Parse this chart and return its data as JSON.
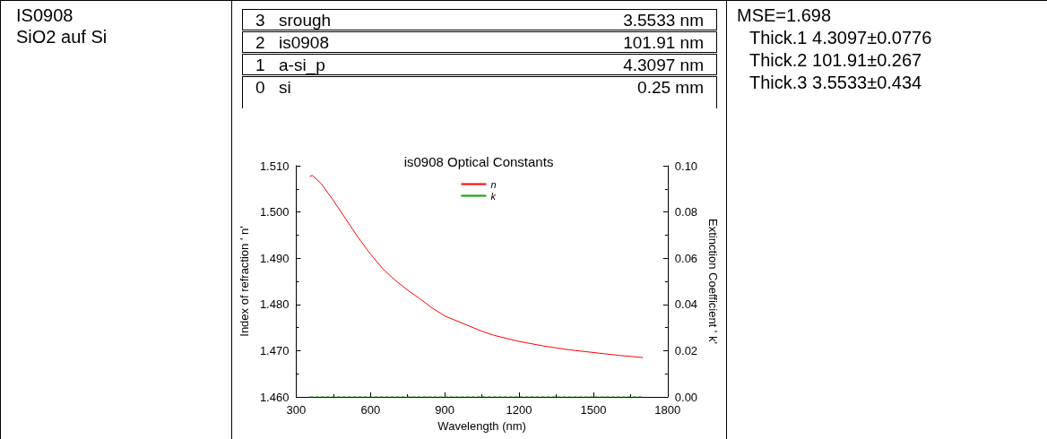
{
  "chart_data": {
    "type": "line",
    "title": "is0908 Optical Constants",
    "xlabel": "Wavelength (nm)",
    "ylabel": "Index of refraction ' n'",
    "y2label": "Extinction Coefficient ' k'",
    "annotations": [
      "IS0908",
      "SiO2 auf Si",
      "3",
      "srough",
      "3.5533 nm",
      "2",
      "is0908",
      "101.91 nm",
      "1",
      "a-si_p",
      "4.3097 nm",
      "0",
      "si",
      "0.25 mm",
      "MSE=1.698",
      "Thick.1  4.3097±0.0776",
      "Thick.2  101.91±0.267",
      "Thick.3  3.5533±0.434"
    ],
    "series": [
      {
        "name": "n",
        "color": "#ff0000",
        "line_style": "solid",
        "x": [
          355,
          365,
          400,
          450,
          500,
          550,
          600,
          650,
          700,
          750,
          800,
          850,
          900,
          1000,
          1050,
          1100,
          1200,
          1300,
          1350,
          1400,
          1500,
          1600,
          1700
        ],
        "values": [
          1.5077,
          1.5079,
          1.5062,
          1.5025,
          1.4985,
          1.4945,
          1.4909,
          1.4877,
          1.4852,
          1.4831,
          1.4812,
          1.4792,
          1.4775,
          1.4753,
          1.4742,
          1.4733,
          1.472,
          1.471,
          1.4706,
          1.4702,
          1.4696,
          1.469,
          1.4685
        ]
      },
      {
        "name": "k",
        "color": "#00a000",
        "line_style": "dashed",
        "axis": "y2",
        "x": [
          355,
          1700
        ],
        "values": [
          0,
          0
        ]
      }
    ],
    "xlim": [
      300,
      1800
    ],
    "xticks": [
      300,
      600,
      900,
      1200,
      1500,
      1800
    ],
    "ylim": [
      1.46,
      1.51
    ],
    "yticks": [
      {
        "value": 1.46,
        "label": "1.460"
      },
      {
        "value": 1.47,
        "label": "1.470"
      },
      {
        "value": 1.48,
        "label": "1.480"
      },
      {
        "value": 1.49,
        "label": "1.490"
      },
      {
        "value": 1.5,
        "label": "1.500"
      },
      {
        "value": 1.51,
        "label": "1.510"
      }
    ],
    "y2lim": [
      0,
      0.1
    ],
    "y2ticks": [
      {
        "value": 0,
        "label": "0.00"
      },
      {
        "value": 0.02,
        "label": "0.02"
      },
      {
        "value": 0.04,
        "label": "0.04"
      },
      {
        "value": 0.06,
        "label": "0.06"
      },
      {
        "value": 0.08,
        "label": "0.08"
      },
      {
        "value": 0.1,
        "label": "0.10"
      }
    ],
    "grid": false,
    "legend": "top",
    "marker": "none"
  }
}
